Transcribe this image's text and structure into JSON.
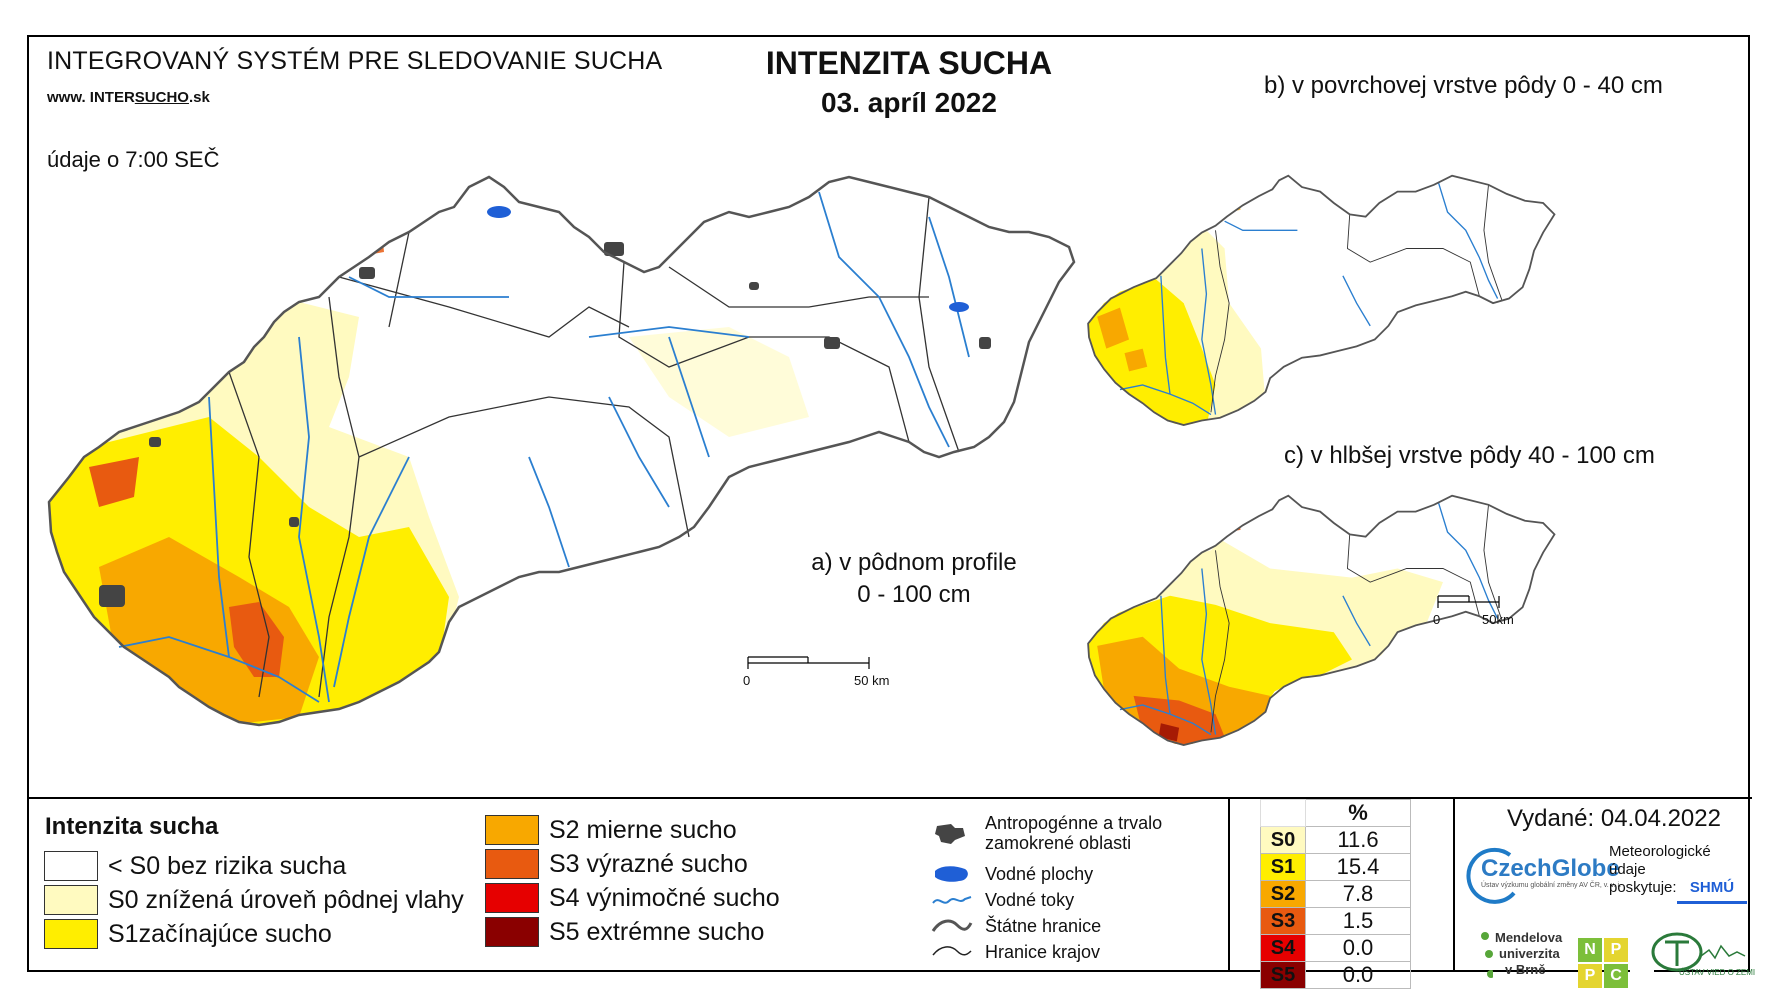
{
  "header": {
    "system_title": "INTEGROVANÝ SYSTÉM PRE SLEDOVANIE SUCHA",
    "website_prefix": "www. INTER",
    "website_mid": "SUCHO",
    "website_suffix": ".sk",
    "time_note": "údaje o 7:00 SEČ"
  },
  "title": {
    "main": "INTENZITA SUCHA",
    "date": "03. apríl 2022"
  },
  "maps": {
    "a_line1": "a) v pôdnom profile",
    "a_line2": "0 - 100 cm",
    "b_label": "b) v povrchovej vrstve pôdy 0 - 40 cm",
    "c_label": "c) v hlbšej vrstve pôdy 40 - 100 cm",
    "scale_main_zero": "0",
    "scale_main_end": "50 km",
    "scale_small_zero": "0",
    "scale_small_end": "50km"
  },
  "legend": {
    "title": "Intenzita sucha",
    "items": [
      {
        "label": "< S0 bez rizika sucha",
        "color": "#ffffff"
      },
      {
        "label": "S0 znížená úroveň pôdnej vlahy",
        "color": "#fffac0"
      },
      {
        "label": "S1začínajúce sucho",
        "color": "#ffee00"
      },
      {
        "label": "S2 mierne sucho",
        "color": "#f8a800"
      },
      {
        "label": "S3 výrazné sucho",
        "color": "#e85a10"
      },
      {
        "label": "S4 výnimočné sucho",
        "color": "#e60000"
      },
      {
        "label": "S5 extrémne sucho",
        "color": "#8a0000"
      }
    ]
  },
  "symbols": {
    "anthropogenic_line1": "Antropogénne a trvalo",
    "anthropogenic_line2": "zamokrené oblasti",
    "water_bodies": "Vodné plochy",
    "rivers": "Vodné toky",
    "state_border": "Štátne hranice",
    "region_border": "Hranice krajov"
  },
  "percent_table": {
    "header": "%",
    "rows": [
      {
        "code": "S0",
        "value": "11.6",
        "color": "#fffac0",
        "text_color": "#000000"
      },
      {
        "code": "S1",
        "value": "15.4",
        "color": "#ffee00",
        "text_color": "#000000"
      },
      {
        "code": "S2",
        "value": "7.8",
        "color": "#f8a800",
        "text_color": "#000000"
      },
      {
        "code": "S3",
        "value": "1.5",
        "color": "#e85a10",
        "text_color": "#000000"
      },
      {
        "code": "S4",
        "value": "0.0",
        "color": "#e60000",
        "text_color": "#000000"
      },
      {
        "code": "S5",
        "value": "0.0",
        "color": "#8a0000",
        "text_color": "#000000"
      }
    ]
  },
  "credits": {
    "issued": "Vydané: 04.04.2022",
    "czechglobe": "CzechGlobe",
    "czechglobe_sub": "Ústav výzkumu globální změny AV ČR, v. v. i.",
    "met_line1": "Meteorologické",
    "met_line2": "údaje",
    "met_line3": "poskytuje:",
    "shmu": "SHMÚ",
    "mendel_line1": "Mendelova",
    "mendel_line2": "univerzita",
    "mendel_line3": "v Brně",
    "nppc_n": "N",
    "nppc_p1": "P",
    "nppc_p2": "P",
    "nppc_c": "C",
    "uvz": "ÚSTAV VIED O ZEMI"
  }
}
